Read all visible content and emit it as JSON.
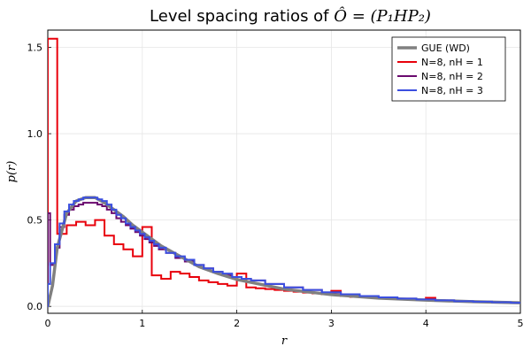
{
  "chart_data": {
    "type": "line",
    "title_prefix": "Level spacing ratios of ",
    "title_math": "Ô = (P₁HP₂)",
    "xlabel": "r",
    "ylabel": "p(r)",
    "xlim": [
      0,
      5
    ],
    "ylim": [
      -0.04,
      1.6
    ],
    "xticks": [
      0,
      1,
      2,
      3,
      4,
      5
    ],
    "yticks": [
      0.0,
      0.5,
      1.0,
      1.5
    ],
    "xtick_labels": [
      "0",
      "1",
      "2",
      "3",
      "4",
      "5"
    ],
    "ytick_labels": [
      "0.0",
      "0.5",
      "1.0",
      "1.5"
    ],
    "grid": true,
    "legend_position": "top-right",
    "series": [
      {
        "name": "GUE (WD)",
        "style": "smooth",
        "color": "#808080",
        "x": [
          0,
          0.05,
          0.1,
          0.2,
          0.3,
          0.4,
          0.5,
          0.6,
          0.7,
          0.8,
          0.9,
          1.0,
          1.2,
          1.4,
          1.6,
          1.8,
          2.0,
          2.5,
          3.0,
          3.5,
          4.0,
          4.5,
          5.0
        ],
        "y": [
          0,
          0.12,
          0.34,
          0.54,
          0.61,
          0.63,
          0.63,
          0.6,
          0.56,
          0.52,
          0.47,
          0.43,
          0.35,
          0.29,
          0.23,
          0.19,
          0.156,
          0.1,
          0.068,
          0.048,
          0.036,
          0.027,
          0.021
        ]
      },
      {
        "name": "N=8, nH = 1",
        "style": "step",
        "color": "#e8000b",
        "x": [
          0,
          0.1,
          0.2,
          0.3,
          0.4,
          0.5,
          0.6,
          0.7,
          0.8,
          0.9,
          1.0,
          1.1,
          1.2,
          1.3,
          1.4,
          1.5,
          1.6,
          1.7,
          1.8,
          1.9,
          2.0,
          2.1,
          2.2,
          2.3,
          2.4,
          2.5,
          2.6,
          2.7,
          2.8,
          2.9,
          3.0,
          3.1,
          3.2,
          3.3,
          3.4,
          3.5,
          3.6,
          3.7,
          3.8,
          3.9,
          4.0,
          4.1,
          4.2,
          4.3,
          4.4,
          4.5,
          4.6,
          4.7,
          4.8,
          4.9
        ],
        "y": [
          1.55,
          0.42,
          0.47,
          0.49,
          0.47,
          0.5,
          0.41,
          0.36,
          0.33,
          0.29,
          0.46,
          0.18,
          0.16,
          0.2,
          0.19,
          0.17,
          0.15,
          0.14,
          0.13,
          0.12,
          0.19,
          0.11,
          0.105,
          0.1,
          0.095,
          0.09,
          0.085,
          0.08,
          0.075,
          0.07,
          0.09,
          0.06,
          0.055,
          0.052,
          0.05,
          0.047,
          0.045,
          0.043,
          0.04,
          0.038,
          0.05,
          0.035,
          0.033,
          0.031,
          0.029,
          0.027,
          0.025,
          0.023,
          0.022,
          0.02
        ]
      },
      {
        "name": "N=8, nH = 2",
        "style": "step",
        "color": "#6a0a6e",
        "x": [
          0,
          0.025,
          0.075,
          0.125,
          0.175,
          0.225,
          0.275,
          0.325,
          0.375,
          0.425,
          0.475,
          0.525,
          0.575,
          0.625,
          0.675,
          0.725,
          0.775,
          0.825,
          0.875,
          0.925,
          0.975,
          1.025,
          1.075,
          1.125,
          1.175,
          1.25,
          1.35,
          1.45,
          1.55,
          1.65,
          1.75,
          1.85,
          1.95,
          2.05,
          2.15,
          2.3,
          2.5,
          2.7,
          2.9,
          3.1,
          3.3,
          3.5,
          3.7,
          3.9,
          4.1,
          4.3,
          4.5,
          4.7,
          4.9
        ],
        "y": [
          0.54,
          0.24,
          0.34,
          0.46,
          0.53,
          0.56,
          0.58,
          0.59,
          0.6,
          0.6,
          0.6,
          0.59,
          0.58,
          0.56,
          0.54,
          0.51,
          0.49,
          0.47,
          0.45,
          0.43,
          0.41,
          0.39,
          0.37,
          0.35,
          0.33,
          0.31,
          0.28,
          0.26,
          0.24,
          0.22,
          0.2,
          0.18,
          0.17,
          0.16,
          0.15,
          0.13,
          0.11,
          0.095,
          0.08,
          0.07,
          0.06,
          0.05,
          0.045,
          0.04,
          0.035,
          0.03,
          0.027,
          0.024,
          0.021
        ]
      },
      {
        "name": "N=8, nH = 3",
        "style": "step",
        "color": "#3b4fe0",
        "x": [
          0,
          0.025,
          0.075,
          0.125,
          0.175,
          0.225,
          0.275,
          0.325,
          0.375,
          0.425,
          0.475,
          0.525,
          0.575,
          0.625,
          0.675,
          0.725,
          0.775,
          0.825,
          0.875,
          0.925,
          0.975,
          1.025,
          1.075,
          1.125,
          1.175,
          1.25,
          1.35,
          1.45,
          1.55,
          1.65,
          1.75,
          1.85,
          1.95,
          2.05,
          2.15,
          2.3,
          2.5,
          2.7,
          2.9,
          3.1,
          3.3,
          3.5,
          3.7,
          3.9,
          4.1,
          4.3,
          4.5,
          4.7,
          4.9
        ],
        "y": [
          0.13,
          0.25,
          0.36,
          0.48,
          0.55,
          0.59,
          0.61,
          0.62,
          0.63,
          0.63,
          0.63,
          0.62,
          0.61,
          0.59,
          0.56,
          0.53,
          0.51,
          0.48,
          0.46,
          0.44,
          0.42,
          0.4,
          0.38,
          0.36,
          0.34,
          0.31,
          0.29,
          0.27,
          0.24,
          0.22,
          0.2,
          0.19,
          0.17,
          0.16,
          0.15,
          0.13,
          0.11,
          0.095,
          0.082,
          0.07,
          0.06,
          0.052,
          0.045,
          0.04,
          0.035,
          0.03,
          0.027,
          0.024,
          0.021
        ]
      }
    ]
  }
}
